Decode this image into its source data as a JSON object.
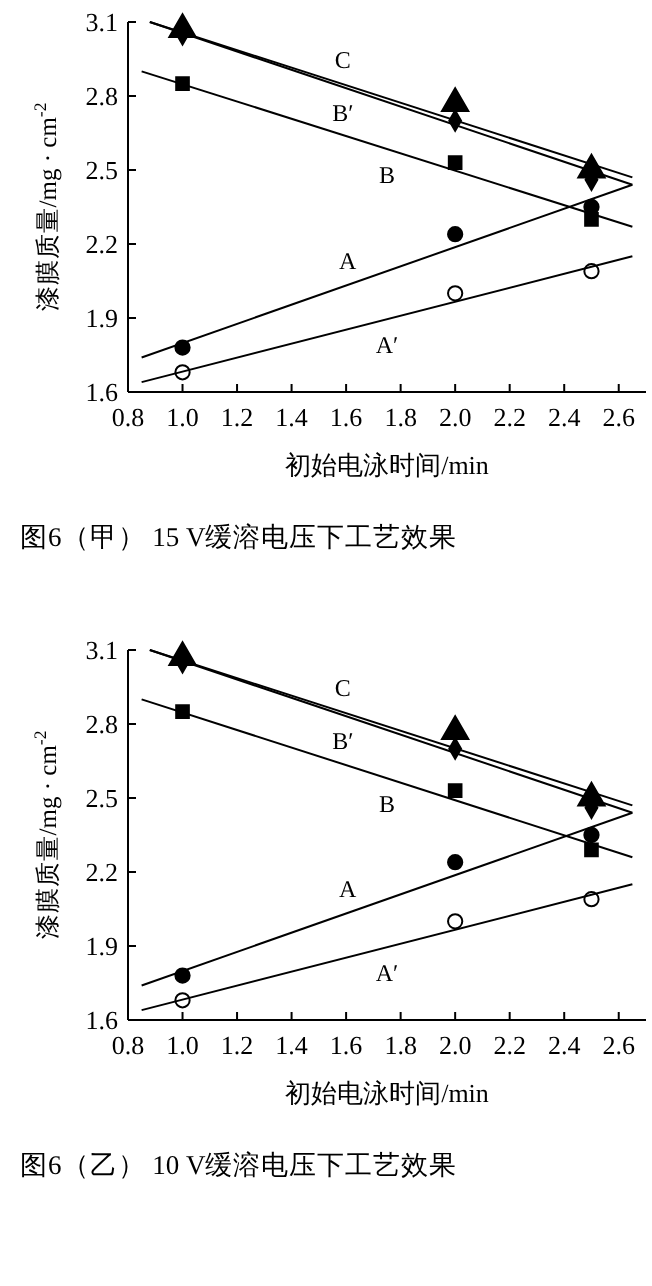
{
  "chart_data": [
    {
      "type": "scatter",
      "title": "图6（甲） 15 V缓溶电压下工艺效果",
      "xlabel": "初始电泳时间/min",
      "ylabel": "漆膜质量/mg · cm$^{-2}$",
      "xlim": [
        0.8,
        2.7
      ],
      "ylim": [
        1.6,
        3.1
      ],
      "xticks": [
        {
          "value": 0.8,
          "label": "0.8"
        },
        {
          "value": 1,
          "label": "1.0"
        },
        {
          "value": 1.2,
          "label": "1.2"
        },
        {
          "value": 1.4,
          "label": "1.4"
        },
        {
          "value": 1.6,
          "label": "1.6"
        },
        {
          "value": 1.8,
          "label": "1.8"
        },
        {
          "value": 2,
          "label": "2.0"
        },
        {
          "value": 2.2,
          "label": "2.2"
        },
        {
          "value": 2.4,
          "label": "2.4"
        },
        {
          "value": 2.6,
          "label": "2.6"
        }
      ],
      "yticks": [
        1.6,
        1.9,
        2.2,
        2.5,
        2.8,
        3.1
      ],
      "series": [
        {
          "marker": "triangle",
          "color": "#000000",
          "x": [
            1,
            2,
            2.5
          ],
          "values": [
            3.07,
            2.77,
            2.5
          ]
        },
        {
          "marker": "diamond",
          "color": "#000000",
          "x": [
            1,
            2,
            2.5
          ],
          "values": [
            3.05,
            2.7,
            2.46
          ]
        },
        {
          "marker": "square",
          "color": "#000000",
          "x": [
            1,
            2,
            2.5
          ],
          "values": [
            2.85,
            2.53,
            2.3
          ]
        },
        {
          "marker": "circle",
          "color": "#000000",
          "x": [
            1,
            2,
            2.5
          ],
          "values": [
            1.78,
            2.24,
            2.35
          ]
        },
        {
          "marker": "circle",
          "color": "#ffffff",
          "x": [
            1,
            2,
            2.5
          ],
          "values": [
            1.68,
            2.0,
            2.09
          ]
        },
        {
          "type": "line",
          "name": "C",
          "marker": "none",
          "color": "#000000",
          "x": [
            0.88,
            2.65
          ],
          "values": [
            3.1,
            2.47
          ]
        },
        {
          "type": "line",
          "name": "B′",
          "marker": "none",
          "color": "#000000",
          "x": [
            0.88,
            2.65
          ],
          "values": [
            3.1,
            2.44
          ]
        },
        {
          "type": "line",
          "name": "B",
          "marker": "none",
          "color": "#000000",
          "x": [
            0.85,
            2.65
          ],
          "values": [
            2.9,
            2.27
          ]
        },
        {
          "type": "line",
          "name": "A",
          "marker": "none",
          "color": "#000000",
          "x": [
            0.85,
            2.65
          ],
          "values": [
            1.74,
            2.44
          ]
        },
        {
          "type": "line",
          "name": "A′",
          "marker": "none",
          "color": "#000000",
          "x": [
            0.85,
            2.65
          ],
          "values": [
            1.64,
            2.15
          ]
        }
      ]
    },
    {
      "type": "scatter",
      "title": "图6（乙） 10 V缓溶电压下工艺效果",
      "xlabel": "初始电泳时间/min",
      "ylabel": "漆膜质量/mg · cm$^{-2}$",
      "xlim": [
        0.8,
        2.7
      ],
      "ylim": [
        1.6,
        3.1
      ],
      "xticks": [
        {
          "value": 0.8,
          "label": "0.8"
        },
        {
          "value": 1,
          "label": "1.0"
        },
        {
          "value": 1.2,
          "label": "1.2"
        },
        {
          "value": 1.4,
          "label": "1.4"
        },
        {
          "value": 1.6,
          "label": "1.6"
        },
        {
          "value": 1.8,
          "label": "1.8"
        },
        {
          "value": 2,
          "label": "2.0"
        },
        {
          "value": 2.2,
          "label": "2.2"
        },
        {
          "value": 2.4,
          "label": "2.4"
        },
        {
          "value": 2.6,
          "label": "2.6"
        }
      ],
      "yticks": [
        1.6,
        1.9,
        2.2,
        2.5,
        2.8,
        3.1
      ],
      "series": [
        {
          "marker": "triangle",
          "color": "#000000",
          "x": [
            1,
            2,
            2.5
          ],
          "values": [
            3.07,
            2.77,
            2.5
          ]
        },
        {
          "marker": "diamond",
          "color": "#000000",
          "x": [
            1,
            2,
            2.5
          ],
          "values": [
            3.05,
            2.7,
            2.46
          ]
        },
        {
          "marker": "square",
          "color": "#000000",
          "x": [
            1,
            2,
            2.5
          ],
          "values": [
            2.85,
            2.53,
            2.29
          ]
        },
        {
          "marker": "circle",
          "color": "#000000",
          "x": [
            1,
            2,
            2.5
          ],
          "values": [
            1.78,
            2.24,
            2.35
          ]
        },
        {
          "marker": "circle",
          "color": "#ffffff",
          "x": [
            1,
            2,
            2.5
          ],
          "values": [
            1.68,
            2.0,
            2.09
          ]
        },
        {
          "type": "line",
          "name": "C",
          "marker": "none",
          "color": "#000000",
          "x": [
            0.88,
            2.65
          ],
          "values": [
            3.1,
            2.47
          ]
        },
        {
          "type": "line",
          "name": "B′",
          "marker": "none",
          "color": "#000000",
          "x": [
            0.88,
            2.65
          ],
          "values": [
            3.1,
            2.44
          ]
        },
        {
          "type": "line",
          "name": "B",
          "marker": "none",
          "color": "#000000",
          "x": [
            0.85,
            2.65
          ],
          "values": [
            2.9,
            2.26
          ]
        },
        {
          "type": "line",
          "name": "A",
          "marker": "none",
          "color": "#000000",
          "x": [
            0.85,
            2.65
          ],
          "values": [
            1.74,
            2.44
          ]
        },
        {
          "type": "line",
          "name": "A′",
          "marker": "none",
          "color": "#000000",
          "x": [
            0.85,
            2.65
          ],
          "values": [
            1.64,
            2.15
          ]
        }
      ]
    }
  ]
}
